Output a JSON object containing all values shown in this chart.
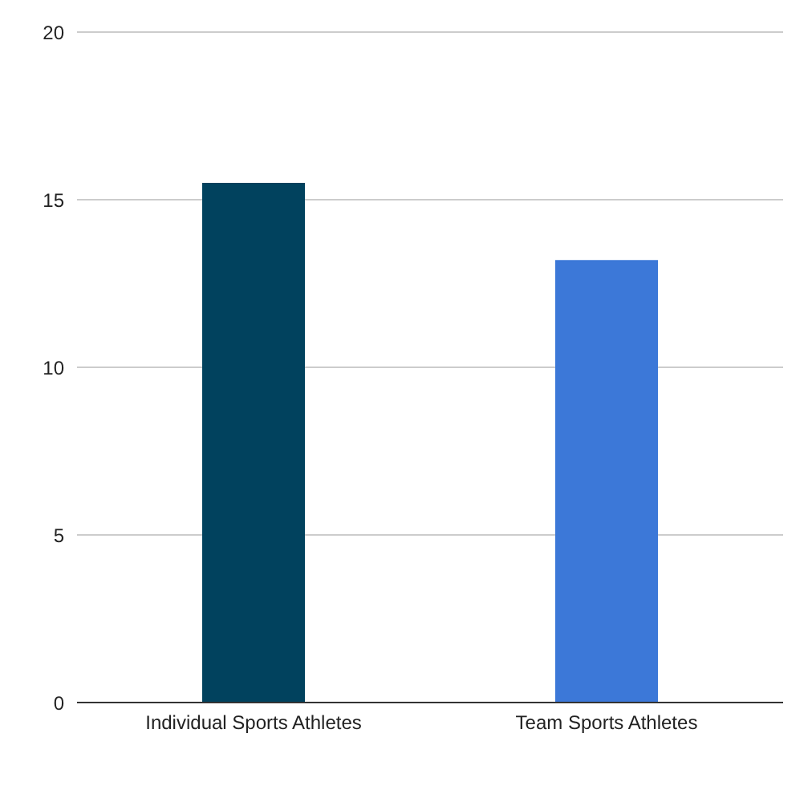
{
  "chart_data": {
    "type": "bar",
    "categories": [
      "Individual Sports Athletes",
      "Team Sports Athletes"
    ],
    "values": [
      15.5,
      13.2
    ],
    "colors": [
      "#01425e",
      "#3c78d8"
    ],
    "ylim": [
      0,
      20
    ],
    "yticks": [
      0,
      5,
      10,
      15,
      20
    ],
    "grid": "y"
  }
}
